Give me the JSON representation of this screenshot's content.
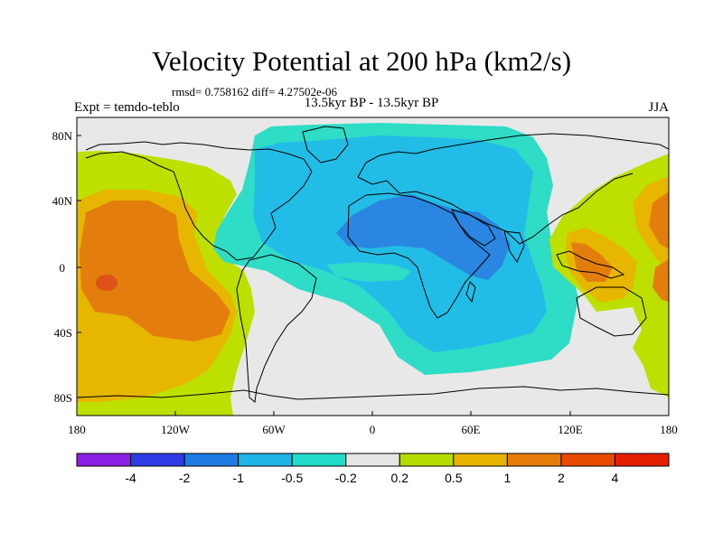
{
  "title": "Velocity Potential at 200 hPa (km2/s)",
  "stats": "rmsd= 0.758162 diff= 4.27502e-06",
  "experiment": "Expt = temdo-teblo",
  "period": "13.5kyr BP - 13.5kyr BP",
  "season": "JJA",
  "axes": {
    "lat_labels": [
      "80N",
      "40N",
      "0",
      "40S",
      "80S"
    ],
    "lon_labels": [
      "180",
      "120W",
      "60W",
      "0",
      "60E",
      "120E",
      "180"
    ]
  },
  "colorbar": {
    "labels": [
      "-4",
      "-2",
      "-1",
      "-0.5",
      "-0.2",
      "0.2",
      "0.5",
      "1",
      "2",
      "4"
    ],
    "colors": [
      "#8c1ee6",
      "#2d3ce6",
      "#1e7be1",
      "#1eb4e6",
      "#1edcc8",
      "#e6e6e6",
      "#b4dc00",
      "#e6b400",
      "#e67d0a",
      "#e64b00",
      "#e61e00"
    ]
  },
  "colors": {
    "neutral": "#e8e8e8",
    "cyan_light": "#2fdcc6",
    "cyan": "#22bde6",
    "blue": "#2a86e0",
    "yellow_green": "#bde000",
    "orange_yellow": "#e7b600",
    "orange": "#e37e0c",
    "red_orange": "#e0501a"
  }
}
